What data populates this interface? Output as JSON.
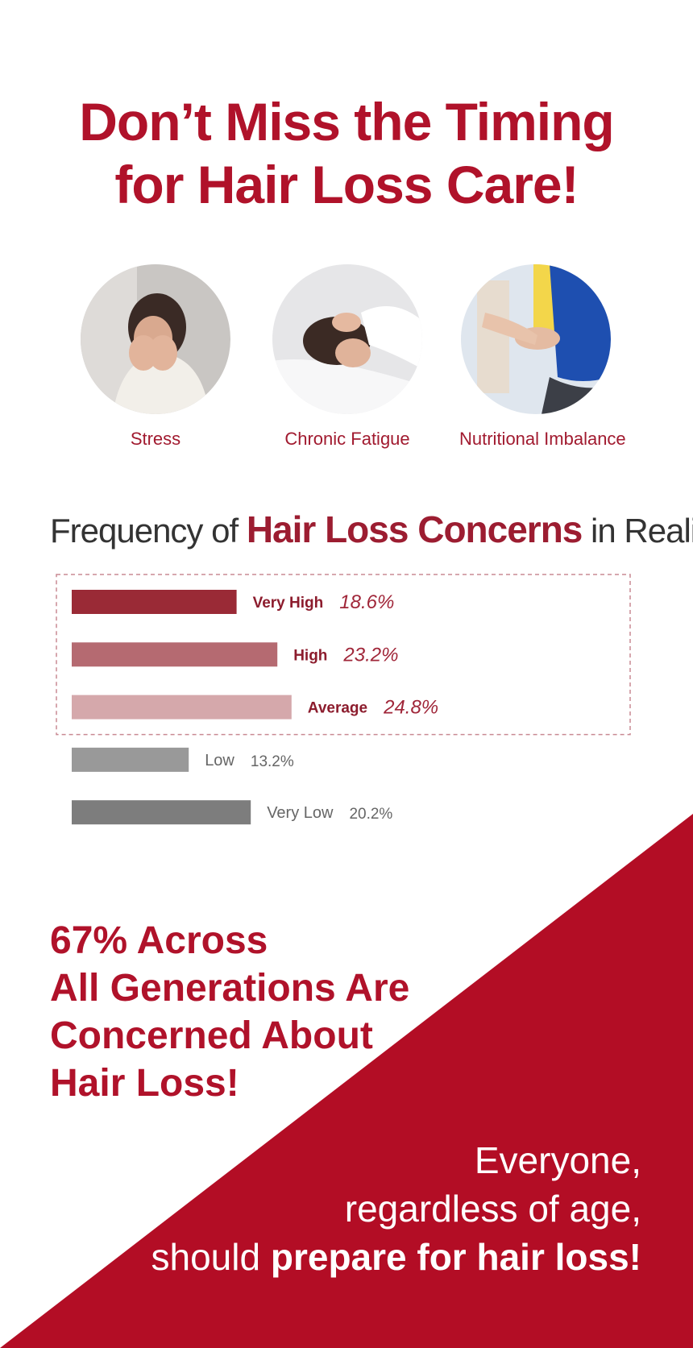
{
  "headline": {
    "line1": "Don’t Miss the Timing",
    "line2": "for Hair Loss Care!"
  },
  "causes": [
    {
      "label": "Stress"
    },
    {
      "label": "Chronic Fatigue"
    },
    {
      "label": "Nutritional Imbalance"
    }
  ],
  "frequency_title": {
    "before": "Frequency of ",
    "highlight": "Hair Loss Concerns",
    "after": " in Reality:"
  },
  "colors": {
    "brand_red": "#b0122a",
    "dark_red": "#9c1d31"
  },
  "chart_data": {
    "type": "bar",
    "orientation": "horizontal",
    "categories": [
      "Very High",
      "High",
      "Average",
      "Low",
      "Very Low"
    ],
    "values": [
      18.6,
      23.2,
      24.8,
      13.2,
      20.2
    ],
    "value_labels": [
      "18.6%",
      "23.2%",
      "24.8%",
      "13.2%",
      "20.2%"
    ],
    "bar_colors": [
      "#9a2a36",
      "#b56a71",
      "#d5a8ab",
      "#999999",
      "#7d7d7d"
    ],
    "highlighted_categories": [
      "Very High",
      "High",
      "Average"
    ]
  },
  "summary": {
    "line1": "67% Across",
    "line2": "All Generations Are",
    "line3": "Concerned About",
    "line4": "Hair Loss!"
  },
  "closing": {
    "line1": "Everyone,",
    "line2": "regardless of age,",
    "line3_prefix": "should ",
    "line3_bold": "prepare for hair loss!"
  }
}
